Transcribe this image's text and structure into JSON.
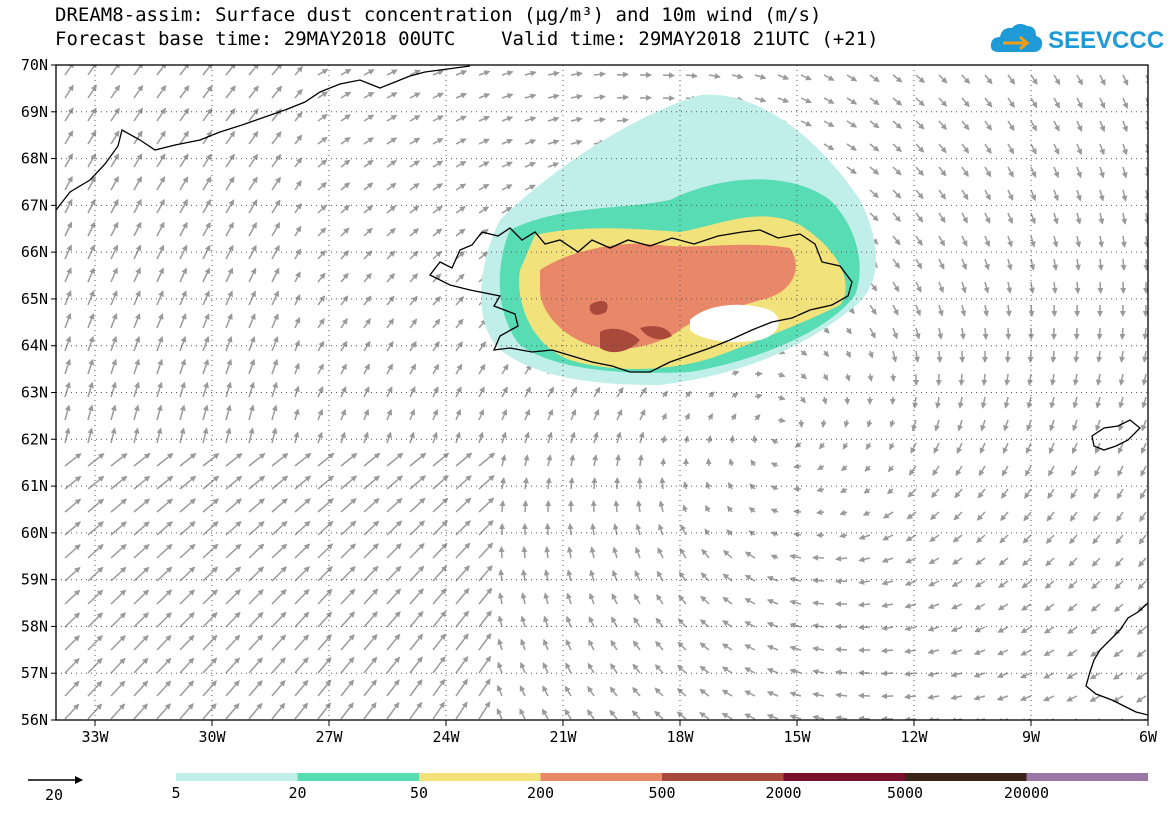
{
  "title": {
    "line1": "DREAM8-assim: Surface dust concentration (µg/m³) and 10m wind (m/s)",
    "line2": "Forecast base time: 29MAY2018 00UTC    Valid time: 29MAY2018 21UTC (+21)"
  },
  "logo": {
    "text": "SEEVCCC",
    "icon": "cloud-icon",
    "color": "#1e9ad6"
  },
  "map": {
    "lon_range": [
      -34,
      -6
    ],
    "lat_range": [
      56,
      70
    ],
    "lon_ticks": [
      "33W",
      "30W",
      "27W",
      "24W",
      "21W",
      "18W",
      "15W",
      "12W",
      "9W",
      "6W"
    ],
    "lat_ticks": [
      "56N",
      "57N",
      "58N",
      "59N",
      "60N",
      "61N",
      "62N",
      "63N",
      "64N",
      "65N",
      "66N",
      "67N",
      "68N",
      "69N",
      "70N"
    ],
    "grid": "dotted"
  },
  "legend": {
    "wind_reference_label": "20",
    "wind_reference_units": "m/s",
    "levels": [
      "5",
      "20",
      "50",
      "200",
      "500",
      "2000",
      "5000",
      "20000"
    ],
    "colors": [
      "#c0efe9",
      "#58dcb3",
      "#f2e27c",
      "#e98868",
      "#a8493c",
      "#7a0f2b",
      "#3a2418",
      "#9b77a6"
    ]
  }
}
